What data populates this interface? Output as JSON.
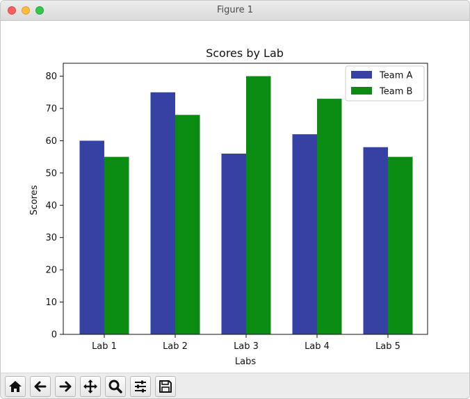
{
  "window": {
    "title": "Figure 1"
  },
  "toolbar": {
    "buttons": [
      {
        "name": "home-button",
        "icon": "home-icon"
      },
      {
        "name": "back-button",
        "icon": "arrow-left-icon"
      },
      {
        "name": "forward-button",
        "icon": "arrow-right-icon"
      },
      {
        "name": "pan-button",
        "icon": "move-icon"
      },
      {
        "name": "zoom-button",
        "icon": "magnifier-icon"
      },
      {
        "name": "configure-subplots-button",
        "icon": "sliders-icon"
      },
      {
        "name": "save-button",
        "icon": "floppy-disk-icon"
      }
    ]
  },
  "colors": {
    "team_a": "#3541a3",
    "team_b": "#0a8c12"
  },
  "chart_data": {
    "type": "bar",
    "title": "Scores by Lab",
    "xlabel": "Labs",
    "ylabel": "Scores",
    "categories": [
      "Lab 1",
      "Lab 2",
      "Lab 3",
      "Lab 4",
      "Lab 5"
    ],
    "series": [
      {
        "name": "Team A",
        "values": [
          60,
          75,
          56,
          62,
          58
        ]
      },
      {
        "name": "Team B",
        "values": [
          55,
          68,
          80,
          73,
          55
        ]
      }
    ],
    "ylim": [
      0,
      84
    ],
    "yticks": [
      0,
      10,
      20,
      30,
      40,
      50,
      60,
      70,
      80
    ],
    "grid": false,
    "legend_position": "top-right"
  }
}
